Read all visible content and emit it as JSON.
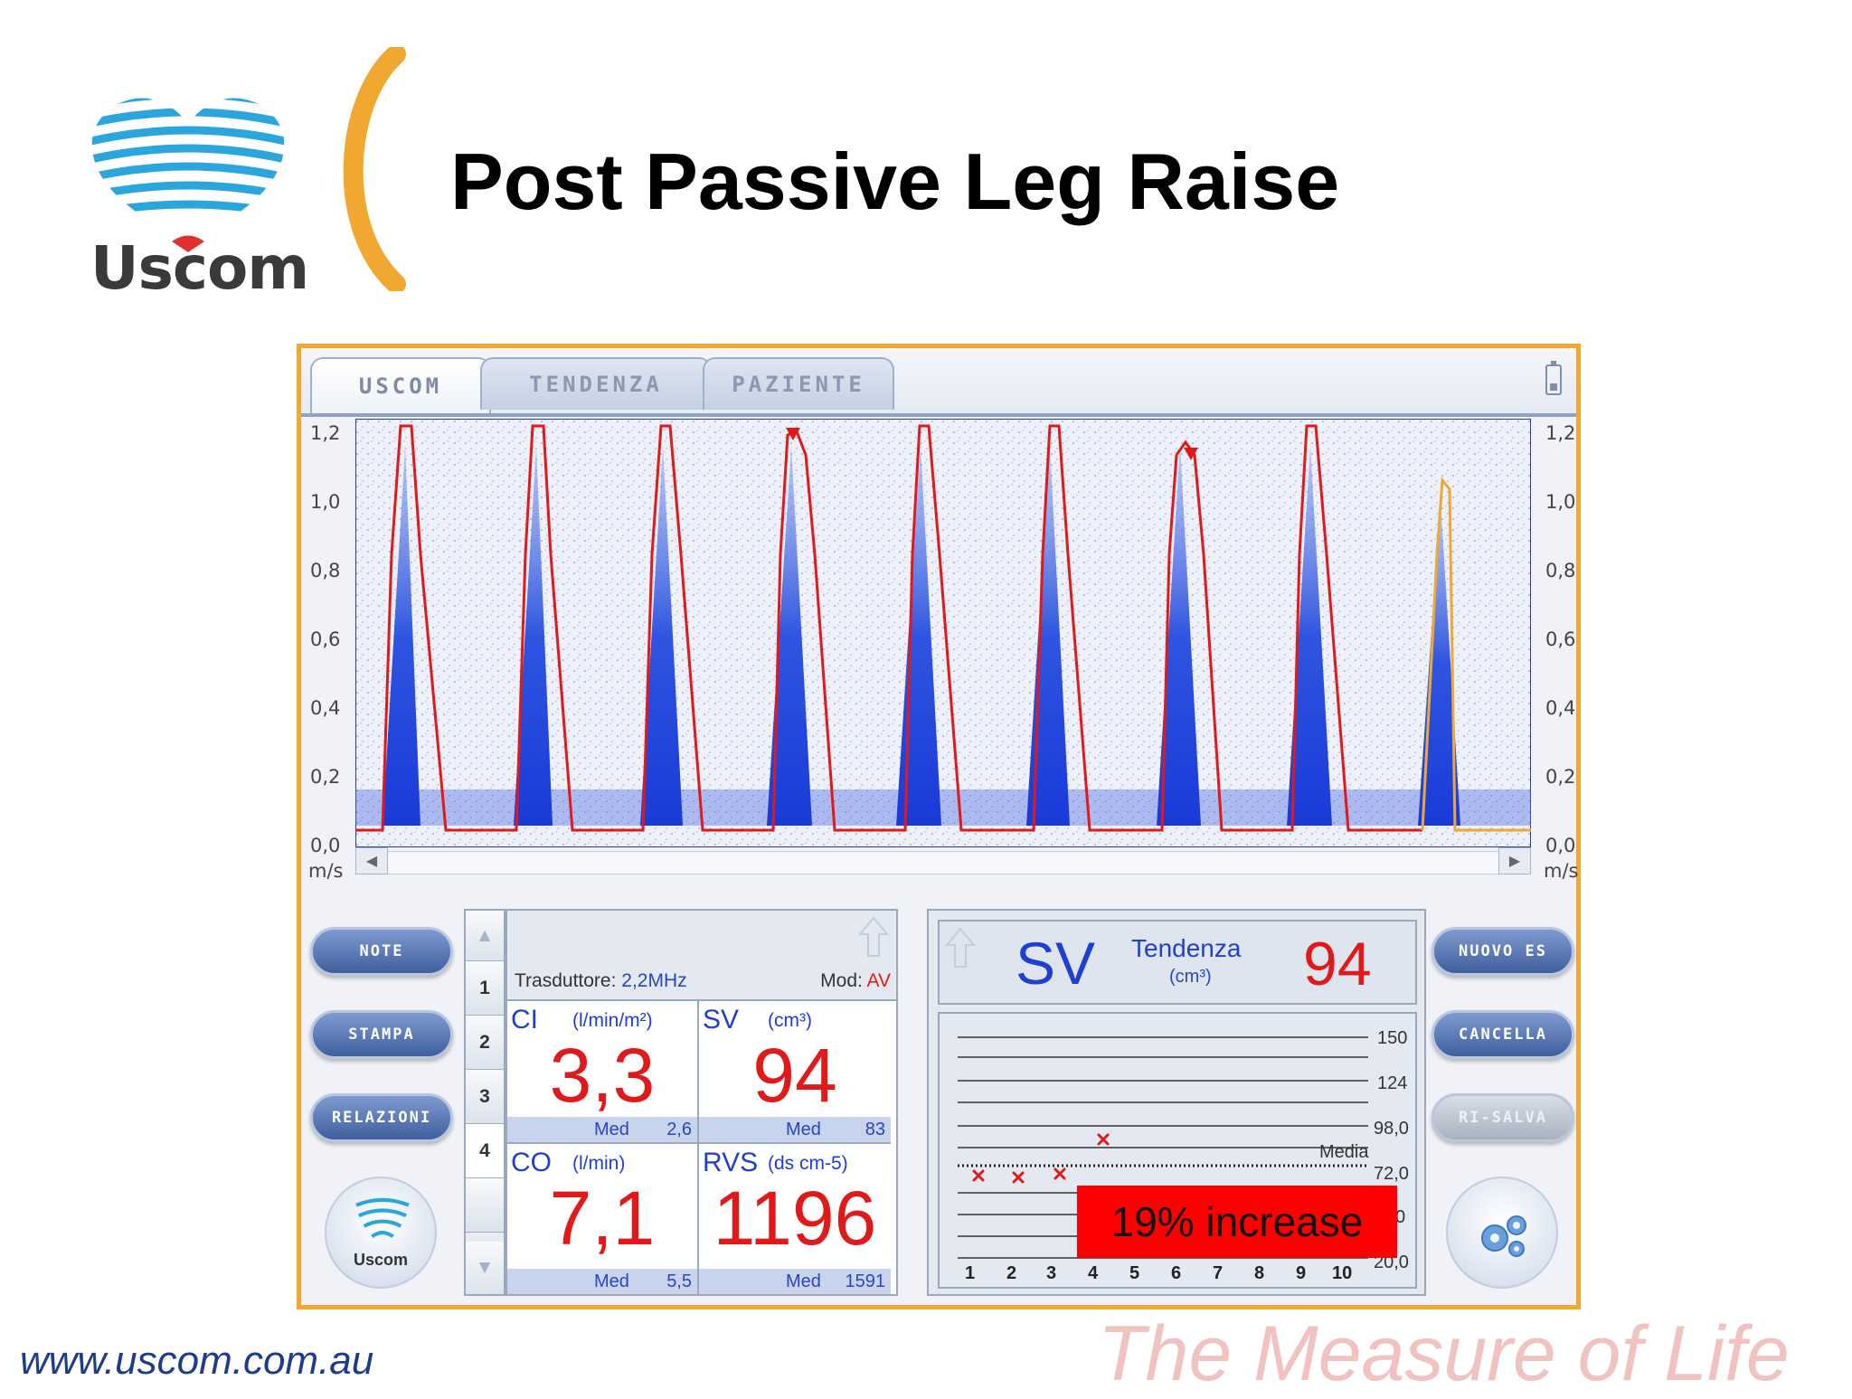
{
  "header": {
    "logo_text": "Uscom",
    "title": "Post Passive Leg Raise"
  },
  "app": {
    "tabs": [
      "USCOM",
      "TENDENZA",
      "PAZIENTE"
    ],
    "doppler": {
      "y_ticks": [
        "1,2",
        "1,0",
        "0,8",
        "0,6",
        "0,4",
        "0,2",
        "0,0"
      ],
      "y_unit": "m/s",
      "scroll_left": "◀",
      "scroll_right": "▶"
    },
    "left_buttons": [
      "NOTE",
      "STAMPA",
      "RELAZIONI"
    ],
    "right_buttons": {
      "nuovo_es": "NUOVO ES",
      "cancella": "CANCELLA",
      "ri_salva": "RI-SALVA"
    },
    "round_logo_label": "Uscom",
    "row_selector": [
      "1",
      "2",
      "3",
      "4"
    ],
    "selected_row": "4",
    "data_panel": {
      "transducer_label": "Trasduttore:",
      "transducer_value": "2,2MHz",
      "mode_label": "Mod:",
      "mode_value": "AV",
      "cells": [
        {
          "label": "CI",
          "unit": "(l/min/m²)",
          "value": "3,3",
          "med_label": "Med",
          "med_value": "2,6"
        },
        {
          "label": "SV",
          "unit": "(cm³)",
          "value": "94",
          "med_label": "Med",
          "med_value": "83"
        },
        {
          "label": "CO",
          "unit": "(l/min)",
          "value": "7,1",
          "med_label": "Med",
          "med_value": "5,5"
        },
        {
          "label": "RVS",
          "unit": "(ds cm-5)",
          "value": "1196",
          "med_label": "Med",
          "med_value": "1591"
        }
      ]
    },
    "trend": {
      "param": "SV",
      "label": "Tendenza",
      "unit": "(cm³)",
      "value": "94",
      "y_labels": [
        "150",
        "124",
        "98,0",
        "72,0",
        "0",
        "20,0"
      ],
      "media_label": "Media",
      "x_labels": [
        "1",
        "2",
        "3",
        "4",
        "5",
        "6",
        "7",
        "8",
        "9",
        "10"
      ],
      "annotation": "19% increase"
    }
  },
  "footer": {
    "url": "www.uscom.com.au",
    "tagline": "The Measure of Life"
  },
  "colors": {
    "frame": "#f0a830",
    "trace": "#e01a1a",
    "active_trace": "#f0a830",
    "value_red": "#e01a1a",
    "label_blue": "#1f3fd0",
    "annotation_bg": "#ff0000"
  }
}
